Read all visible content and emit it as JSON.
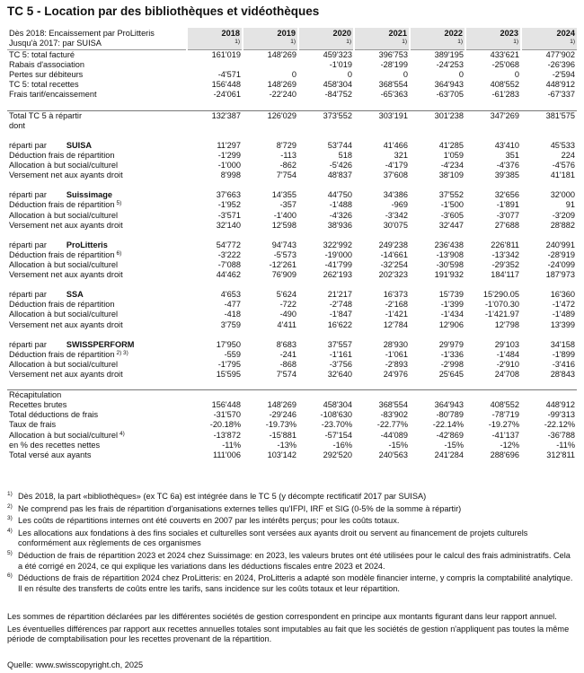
{
  "title": "TC 5 - Location par des bibliothèques et vidéothèques",
  "header": {
    "note": [
      "Dès 2018: Encaissement par ProLitteris",
      "Jusqu'à 2017: par SUISA"
    ],
    "years": [
      {
        "year": "2018",
        "note": "1)"
      },
      {
        "year": "2019",
        "note": "1)"
      },
      {
        "year": "2020",
        "note": "1)"
      },
      {
        "year": "2021",
        "note": "1)"
      },
      {
        "year": "2022",
        "note": "1)"
      },
      {
        "year": "2023",
        "note": "1)"
      },
      {
        "year": "2024",
        "note": "1)"
      }
    ]
  },
  "blocks": [
    {
      "rows": [
        {
          "label": "TC 5: total facturé",
          "values": [
            "161'019",
            "148'269",
            "459'323",
            "396'753",
            "389'195",
            "433'621",
            "477'902"
          ]
        },
        {
          "label": "Rabais d'association",
          "values": [
            null,
            null,
            "-1'019",
            "-28'199",
            "-24'253",
            "-25'068",
            "-26'396"
          ]
        },
        {
          "label": "Pertes sur débiteurs",
          "values": [
            "-4'571",
            "0",
            "0",
            "0",
            "0",
            "0",
            "-2'594"
          ]
        },
        {
          "label": "TC 5: total recettes",
          "values": [
            "156'448",
            "148'269",
            "458'304",
            "368'554",
            "364'943",
            "408'552",
            "448'912"
          ]
        },
        {
          "label": "Frais tarif/encaissement",
          "values": [
            "-24'061",
            "-22'240",
            "-84'752",
            "-65'363",
            "-63'705",
            "-61'283",
            "-67'337"
          ]
        }
      ]
    },
    {
      "rows": [
        {
          "label": "Total TC 5 à répartir",
          "bold": true,
          "values": [
            "132'387",
            "126'029",
            "373'552",
            "303'191",
            "301'238",
            "347'269",
            "381'575"
          ]
        },
        {
          "label": "dont"
        }
      ]
    },
    {
      "rows": [
        {
          "label": "réparti par",
          "org": "SUISA",
          "values": [
            "11'297",
            "8'729",
            "53'744",
            "41'466",
            "41'285",
            "43'410",
            "45'533"
          ]
        },
        {
          "label": "Déduction frais de répartition",
          "values": [
            "-1'299",
            "-113",
            "518",
            "321",
            "1'059",
            "351",
            "224"
          ]
        },
        {
          "label": "Allocation à but social/culturel",
          "values": [
            "-1'000",
            "-862",
            "-5'426",
            "-4'179",
            "-4'234",
            "-4'376",
            "-4'576"
          ]
        },
        {
          "label": "Versement net aux ayants droit",
          "values": [
            "8'998",
            "7'754",
            "48'837",
            "37'608",
            "38'109",
            "39'385",
            "41'181"
          ]
        }
      ]
    },
    {
      "rows": [
        {
          "label": "réparti par",
          "org": "Suissimage",
          "values": [
            "37'663",
            "14'355",
            "44'750",
            "34'386",
            "37'552",
            "32'656",
            "32'000"
          ]
        },
        {
          "label": "Déduction frais de répartition",
          "note": "5)",
          "values": [
            "-1'952",
            "-357",
            "-1'488",
            "-969",
            "-1'500",
            "-1'891",
            "91"
          ]
        },
        {
          "label": "Allocation à but social/culturel",
          "values": [
            "-3'571",
            "-1'400",
            "-4'326",
            "-3'342",
            "-3'605",
            "-3'077",
            "-3'209"
          ]
        },
        {
          "label": "Versement net aux ayants droit",
          "values": [
            "32'140",
            "12'598",
            "38'936",
            "30'075",
            "32'447",
            "27'688",
            "28'882"
          ]
        }
      ]
    },
    {
      "rows": [
        {
          "label": "réparti par",
          "org": "ProLitteris",
          "values": [
            "54'772",
            "94'743",
            "322'992",
            "249'238",
            "236'438",
            "226'811",
            "240'991"
          ]
        },
        {
          "label": "Déduction frais de répartition",
          "note": "6)",
          "values": [
            "-3'222",
            "-5'573",
            "-19'000",
            "-14'661",
            "-13'908",
            "-13'342",
            "-28'919"
          ]
        },
        {
          "label": "Allocation à but social/culturel",
          "values": [
            "-7'088",
            "-12'261",
            "-41'799",
            "-32'254",
            "-30'598",
            "-29'352",
            "-24'099"
          ]
        },
        {
          "label": "Versement net aux ayants droit",
          "values": [
            "44'462",
            "76'909",
            "262'193",
            "202'323",
            "191'932",
            "184'117",
            "187'973"
          ]
        }
      ]
    },
    {
      "rows": [
        {
          "label": "réparti par",
          "org": "SSA",
          "values": [
            "4'653",
            "5'624",
            "21'217",
            "16'373",
            "15'739",
            "15'290.05",
            "16'360"
          ]
        },
        {
          "label": "Déduction frais de répartition",
          "values": [
            "-477",
            "-722",
            "-2'748",
            "-2'168",
            "-1'399",
            "-1'070.30",
            "-1'472"
          ]
        },
        {
          "label": "Allocation à but social/culturel",
          "values": [
            "-418",
            "-490",
            "-1'847",
            "-1'421",
            "-1'434",
            "-1'421.97",
            "-1'489"
          ]
        },
        {
          "label": "Versement net aux ayants droit",
          "values": [
            "3'759",
            "4'411",
            "16'622",
            "12'784",
            "12'906",
            "12'798",
            "13'399"
          ]
        }
      ]
    },
    {
      "rows": [
        {
          "label": "réparti par",
          "org": "SWISSPERFORM",
          "values": [
            "17'950",
            "8'683",
            "37'557",
            "28'930",
            "29'979",
            "29'103",
            "34'158"
          ]
        },
        {
          "label": "Déduction frais de répartition",
          "note": "2) 3)",
          "values": [
            "-559",
            "-241",
            "-1'161",
            "-1'061",
            "-1'336",
            "-1'484",
            "-1'899"
          ]
        },
        {
          "label": "Allocation à but social/culturel",
          "values": [
            "-1'795",
            "-868",
            "-3'756",
            "-2'893",
            "-2'998",
            "-2'910",
            "-3'416"
          ]
        },
        {
          "label": "Versement net aux ayants droit",
          "values": [
            "15'595",
            "7'574",
            "32'640",
            "24'976",
            "25'645",
            "24'708",
            "28'843"
          ]
        }
      ]
    },
    {
      "rows": [
        {
          "label": "Récapitulation"
        },
        {
          "label": "Recettes brutes",
          "bold": true,
          "values": [
            "156'448",
            "148'269",
            "458'304",
            "368'554",
            "364'943",
            "408'552",
            "448'912"
          ]
        },
        {
          "label": "Total déductions de frais",
          "values": [
            "-31'570",
            "-29'246",
            "-108'630",
            "-83'902",
            "-80'789",
            "-78'719",
            "-99'313"
          ]
        },
        {
          "label": "Taux de frais",
          "bold": true,
          "values": [
            "-20.18%",
            "-19.73%",
            "-23.70%",
            "-22.77%",
            "-22.14%",
            "-19.27%",
            "-22.12%"
          ]
        },
        {
          "label": "Allocation à but social/culturel",
          "note": "4)",
          "bold": true,
          "values": [
            "-13'872",
            "-15'881",
            "-57'154",
            "-44'089",
            "-42'869",
            "-41'137",
            "-36'788"
          ]
        },
        {
          "label": "en % des recettes nettes",
          "values": [
            "-11%",
            "-13%",
            "-16%",
            "-15%",
            "-15%",
            "-12%",
            "-11%"
          ]
        },
        {
          "label": "Total versé aux ayants",
          "bold": true,
          "values": [
            "111'006",
            "103'142",
            "292'520",
            "240'563",
            "241'284",
            "288'696",
            "312'811"
          ]
        }
      ]
    }
  ],
  "footnotes": [
    {
      "mark": "1)",
      "text": "Dès 2018, la part «bibliothèques» (ex TC 6a) est intégrée dans le TC 5 (y décompte rectificatif 2017 par SUISA)"
    },
    {
      "mark": "2)",
      "text": "Ne comprend pas les frais de répartition d'organisations externes telles qu'IFPI, IRF et SIG (0-5% de la somme à répartir)"
    },
    {
      "mark": "3)",
      "text": "Les coûts de répartitions internes ont été couverts en 2007 par les intérêts perçus; pour les coûts totaux."
    },
    {
      "mark": "4)",
      "text": "Les allocations aux fondations à des fins sociales et culturelles sont versées aux ayants droit ou servent au financement de projets culturels conformément aux règlements de ces organismes"
    },
    {
      "mark": "5)",
      "text": "Déduction de frais de répartition 2023 et 2024 chez Suissimage: en 2023, les valeurs brutes ont été utilisées pour le calcul des frais administratifs. Cela a été corrigé en 2024, ce qui explique les variations dans les déductions fiscales entre 2023 et 2024."
    },
    {
      "mark": "6)",
      "text": "Déductions de frais de répartition 2024 chez ProLitteris: en 2024, ProLitteris a adapté son modèle financier interne, y compris la comptabilité analytique. Il en résulte des transferts de coûts entre les tarifs, sans incidence sur les coûts totaux et leur répartition."
    }
  ],
  "paragraphs": [
    "Les sommes de répartition déclarées par les différentes sociétés de gestion correspondent en principe aux montants figurant dans leur rapport annuel.",
    "Les éventuelles différences par rapport aux recettes annuelles totales sont imputables au fait que les sociétés de gestion n'appliquent pas toutes la même période de comptabilisation pour les recettes provenant de la répartition."
  ],
  "source": "Quelle: www.swisscopyright.ch, 2025"
}
